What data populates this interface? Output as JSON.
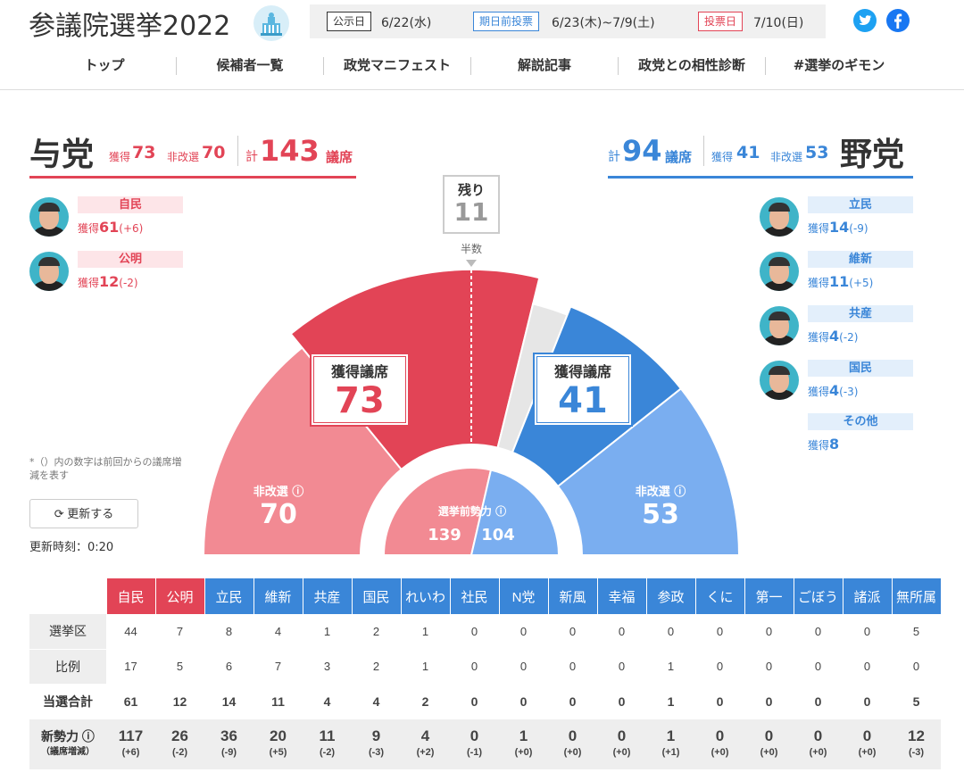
{
  "header": {
    "title": "参議院選挙2022",
    "dates": [
      {
        "label": "公示日",
        "value": "6/22(水)",
        "color": "#333333"
      },
      {
        "label": "期日前投票",
        "value": "6/23(木)~7/9(土)",
        "color": "#3a86d8"
      },
      {
        "label": "投票日",
        "value": "7/10(日)",
        "color": "#e24456"
      }
    ],
    "social": [
      "twitter-icon",
      "facebook-icon"
    ]
  },
  "nav": [
    "トップ",
    "候補者一覧",
    "政党マニフェスト",
    "解説記事",
    "政党との相性診断",
    "#選挙のギモン"
  ],
  "ruling": {
    "name": "与党",
    "won_label": "獲得",
    "won": "73",
    "unchanged_label": "非改選",
    "unchanged": "70",
    "total_prefix": "計",
    "total": "143",
    "total_suffix": "議席",
    "parties": [
      {
        "name": "自民",
        "won_label": "獲得",
        "won": "61",
        "diff": "(+6)"
      },
      {
        "name": "公明",
        "won_label": "獲得",
        "won": "12",
        "diff": "(-2)"
      }
    ]
  },
  "opposition": {
    "name": "野党",
    "won_label": "獲得",
    "won": "41",
    "unchanged_label": "非改選",
    "unchanged": "53",
    "total_prefix": "計",
    "total": "94",
    "total_suffix": "議席",
    "parties": [
      {
        "name": "立民",
        "won_label": "獲得",
        "won": "14",
        "diff": "(-9)"
      },
      {
        "name": "維新",
        "won_label": "獲得",
        "won": "11",
        "diff": "(+5)"
      },
      {
        "name": "共産",
        "won_label": "獲得",
        "won": "4",
        "diff": "(-2)"
      },
      {
        "name": "国民",
        "won_label": "獲得",
        "won": "4",
        "diff": "(-3)"
      },
      {
        "name": "その他",
        "won_label": "獲得",
        "won": "8",
        "diff": ""
      }
    ]
  },
  "chart": {
    "remaining_label": "残り",
    "remaining": "11",
    "majority_label": "半数",
    "won_label": "獲得議席",
    "ruling_won": "73",
    "opposition_won": "41",
    "unchanged_label": "非改選",
    "ruling_unchanged": "70",
    "opposition_unchanged": "53",
    "pre_label": "選挙前勢力",
    "ruling_pre": "139",
    "opposition_pre": "104",
    "colors": {
      "ruling_won": "#e24456",
      "ruling_unchanged": "#f28a93",
      "opp_won": "#3a86d8",
      "opp_unchanged": "#7aaef0",
      "remaining": "#e6e6e6"
    }
  },
  "chart_data": {
    "type": "pie",
    "title": "",
    "categories": [
      "与党 非改選",
      "与党 獲得議席",
      "残り",
      "野党 獲得議席",
      "野党 非改選"
    ],
    "values": [
      70,
      73,
      11,
      41,
      53
    ],
    "inner": {
      "categories": [
        "与党 選挙前勢力",
        "野党 選挙前勢力"
      ],
      "values": [
        139,
        104
      ]
    }
  },
  "note": "*（）内の数字は前回からの議席増減を表す",
  "refresh_label": "更新する",
  "updated": "更新時刻：0:20",
  "table": {
    "parties": [
      "自民",
      "公明",
      "立民",
      "維新",
      "共産",
      "国民",
      "れいわ",
      "社民",
      "N党",
      "新風",
      "幸福",
      "参政",
      "くに",
      "第一",
      "ごぼう",
      "諸派",
      "無所属"
    ],
    "header_colors": [
      "#e24456",
      "#e24456",
      "#3a86d8",
      "#3a86d8",
      "#3a86d8",
      "#3a86d8",
      "#3a86d8",
      "#3a86d8",
      "#3a86d8",
      "#3a86d8",
      "#3a86d8",
      "#3a86d8",
      "#3a86d8",
      "#3a86d8",
      "#3a86d8",
      "#3a86d8",
      "#3a86d8"
    ],
    "rows": [
      {
        "label": "選挙区",
        "values": [
          "44",
          "7",
          "8",
          "4",
          "1",
          "2",
          "1",
          "0",
          "0",
          "0",
          "0",
          "0",
          "0",
          "0",
          "0",
          "0",
          "5"
        ]
      },
      {
        "label": "比例",
        "values": [
          "17",
          "5",
          "6",
          "7",
          "3",
          "2",
          "1",
          "0",
          "0",
          "0",
          "0",
          "1",
          "0",
          "0",
          "0",
          "0",
          "0"
        ]
      },
      {
        "label": "当選合計",
        "values": [
          "61",
          "12",
          "14",
          "11",
          "4",
          "4",
          "2",
          "0",
          "0",
          "0",
          "0",
          "1",
          "0",
          "0",
          "0",
          "0",
          "5"
        ]
      }
    ],
    "strength": {
      "label": "新勢力",
      "sublabel": "（議席増減）",
      "values": [
        "117",
        "26",
        "36",
        "20",
        "11",
        "9",
        "4",
        "0",
        "1",
        "0",
        "0",
        "1",
        "0",
        "0",
        "0",
        "0",
        "12"
      ],
      "diffs": [
        "(+6)",
        "(-2)",
        "(-9)",
        "(+5)",
        "(-2)",
        "(-3)",
        "(+2)",
        "(-1)",
        "(+0)",
        "(+0)",
        "(+0)",
        "(+1)",
        "(+0)",
        "(+0)",
        "(+0)",
        "(+0)",
        "(-3)"
      ]
    }
  }
}
